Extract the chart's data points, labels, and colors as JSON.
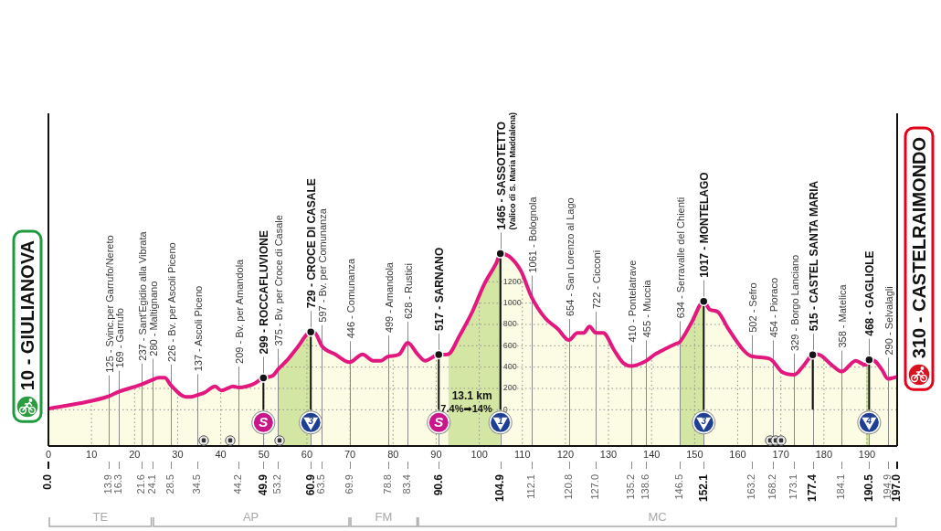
{
  "chart_data": {
    "type": "area",
    "xlim": [
      0,
      197
    ],
    "xticks": [
      0,
      10,
      20,
      30,
      40,
      50,
      60,
      70,
      80,
      90,
      100,
      110,
      120,
      130,
      140,
      150,
      160,
      170,
      180,
      190
    ],
    "x2lim": [
      0,
      197
    ],
    "x2ticks": [
      {
        "value": 0,
        "label": "0.0"
      },
      13.9,
      16.3,
      21.6,
      24.1,
      28.5,
      34.5,
      44.2,
      49.9,
      53.2,
      60.9,
      63.5,
      69.9,
      78.8,
      83.4,
      90.6,
      104.9,
      112.1,
      120.8,
      {
        "value": 127,
        "label": "127.0"
      },
      135.2,
      138.6,
      146.5,
      152.1,
      163.2,
      168.2,
      173.1,
      177.4,
      184.1,
      190.5,
      194.9,
      {
        "value": 197,
        "label": "197.0"
      }
    ],
    "ylim": [
      -340,
      2780
    ],
    "yticks": [
      0,
      200,
      400,
      600,
      800,
      1000,
      1200
    ],
    "grid": true,
    "series": [
      {
        "type": "area",
        "color": "#e2187f",
        "x": [
          0,
          7.2,
          13.9,
          16.3,
          21.6,
          24.1,
          25.6,
          27.0,
          28.5,
          31.9,
          33.0,
          34.5,
          36.2,
          38.7,
          40.1,
          42.9,
          44.2,
          47.5,
          49.9,
          52.1,
          53.2,
          55.3,
          57.7,
          60.9,
          61.9,
          63.5,
          66.6,
          69.9,
          72.9,
          75.4,
          77.2,
          78.8,
          81.4,
          83.4,
          85.7,
          87.4,
          90.6,
          92.7,
          95.5,
          98.4,
          101.2,
          104.0,
          104.9,
          106.9,
          109.7,
          112.1,
          115.3,
          118.2,
          120.8,
          122.8,
          124.2,
          125.6,
          127.0,
          128.8,
          131.3,
          133.4,
          135.2,
          138.6,
          140.8,
          143.6,
          145.7,
          146.5,
          149.3,
          152.1,
          153.5,
          155.3,
          157.8,
          161.3,
          163.2,
          167.3,
          168.2,
          170.1,
          173.1,
          175.4,
          177.4,
          178.6,
          181.8,
          184.1,
          187.4,
          189.6,
          190.5,
          191.7,
          193.4,
          194.9,
          196.1,
          197
        ],
        "values": [
          10,
          60,
          125,
          169,
          237,
          280,
          300,
          300,
          226,
          120,
          120,
          137,
          160,
          220,
          180,
          220,
          209,
          240,
          299,
          320,
          375,
          460,
          580,
          729,
          720,
          597,
          520,
          446,
          520,
          460,
          460,
          499,
          520,
          628,
          520,
          460,
          517,
          520,
          700,
          920,
          1180,
          1380,
          1465,
          1440,
          1300,
          1061,
          860,
          760,
          654,
          720,
          720,
          780,
          722,
          720,
          560,
          440,
          410,
          455,
          520,
          580,
          620,
          634,
          820,
          1017,
          940,
          920,
          760,
          560,
          502,
          480,
          454,
          360,
          329,
          420,
          515,
          520,
          420,
          358,
          460,
          420,
          468,
          460,
          380,
          290,
          300,
          310
        ]
      },
      {
        "type": "lollipop",
        "color": "#151515",
        "x": [
          49.9,
          60.9,
          90.6,
          104.9,
          152.1,
          177.4,
          190.5
        ],
        "values": [
          299,
          729,
          517,
          1465,
          1017,
          515,
          468
        ]
      }
    ],
    "bands": [
      {
        "axis": "y",
        "from": -340,
        "to": 0,
        "color": "#fcfbe4"
      },
      {
        "axis": "x",
        "from": 53.2,
        "to": 60.9,
        "color": "#d4e6a3"
      },
      {
        "axis": "x",
        "from": 92.8,
        "to": 104.9,
        "color": "#d4e6a3",
        "label": "13.1 km\n7.4%➡14%"
      },
      {
        "axis": "x",
        "from": 146.5,
        "to": 152.1,
        "color": "#d4e6a3"
      },
      {
        "axis": "x",
        "from": 189.8,
        "to": 190.5,
        "color": "#d4e6a3"
      }
    ],
    "annotations": [
      {
        "text": "10 - GIULIANOVA",
        "x": 0,
        "y": 10
      },
      {
        "text": "125 - Svinc.per Garrufo/Nereto",
        "x": 13.9,
        "y": 125
      },
      {
        "text": "169 - Garrufo",
        "x": 16.3,
        "y": 169
      },
      {
        "text": "237 - Sant'Egidio alla Vibrata",
        "x": 21.6,
        "y": 237
      },
      {
        "text": "280 - Maltignano",
        "x": 24.1,
        "y": 280
      },
      {
        "text": "226 - Bv. per Ascoli Piceno",
        "x": 28.5,
        "y": 226
      },
      {
        "text": "137 - Ascoli Piceno",
        "x": 34.5,
        "y": 137
      },
      {
        "text": "209 - Bv. per Amandola",
        "x": 44.2,
        "y": 209
      },
      {
        "text": "299 - ROCCAFLUVIONE",
        "x": 49.9,
        "y": 299
      },
      {
        "text": "375 - Bv. per Croce di Casale",
        "x": 53.2,
        "y": 375
      },
      {
        "text": "729 - CROCE DI CASALE",
        "x": 60.9,
        "y": 729
      },
      {
        "text": "597 - Bv. per Comunanza",
        "x": 63.5,
        "y": 597
      },
      {
        "text": "446 - Comunanza",
        "x": 69.9,
        "y": 446
      },
      {
        "text": "499 - Amandola",
        "x": 78.8,
        "y": 499
      },
      {
        "text": "628 - Rustici",
        "x": 83.4,
        "y": 628
      },
      {
        "text": "517 - SARNANO",
        "x": 90.6,
        "y": 517
      },
      {
        "text": "1465 - SASSOTETTO\n(Valico di S. Maria Maddalena)",
        "x": 104.9,
        "y": 1465
      },
      {
        "text": "1061 - Bolognola",
        "x": 112.1,
        "y": 1061
      },
      {
        "text": "654 - San Lorenzo al Lago",
        "x": 120.8,
        "y": 654
      },
      {
        "text": "722 - Cicconi",
        "x": 127,
        "y": 722
      },
      {
        "text": "410 - Pontelatrave",
        "x": 135.2,
        "y": 410
      },
      {
        "text": "455 - Muccia",
        "x": 138.6,
        "y": 455
      },
      {
        "text": "634 - Serravalle del Chienti",
        "x": 146.5,
        "y": 634
      },
      {
        "text": "1017 - MONTELAGO",
        "x": 152.1,
        "y": 1017
      },
      {
        "text": "502 - Sefro",
        "x": 163.2,
        "y": 502
      },
      {
        "text": "454 - Pioraco",
        "x": 168.2,
        "y": 454
      },
      {
        "text": "329 - Borgo Lanciano",
        "x": 173.1,
        "y": 329
      },
      {
        "text": "515 - CASTEL SANTA MARIA",
        "x": 177.4,
        "y": 515
      },
      {
        "text": "358 - Matelica",
        "x": 184.1,
        "y": 358
      },
      {
        "text": "468 - GAGLIOLE",
        "x": 190.5,
        "y": 468
      },
      {
        "text": "290 - Selvalagli",
        "x": 194.9,
        "y": 290
      },
      {
        "text": "310 - CASTELRAIMONDO",
        "x": 197,
        "y": 310
      },
      {
        "text": "S",
        "x": 49.9,
        "y": -120
      },
      {
        "text": "3",
        "x": 60.9,
        "y": -120
      },
      {
        "text": "S",
        "x": 90.6,
        "y": -120
      },
      {
        "text": "1",
        "x": 104.9,
        "y": -120
      },
      {
        "text": "3",
        "x": 152.1,
        "y": -120
      },
      {
        "text": "4",
        "x": 190.5,
        "y": -120
      },
      "TE",
      "AP",
      "FM",
      "MC"
    ]
  }
}
